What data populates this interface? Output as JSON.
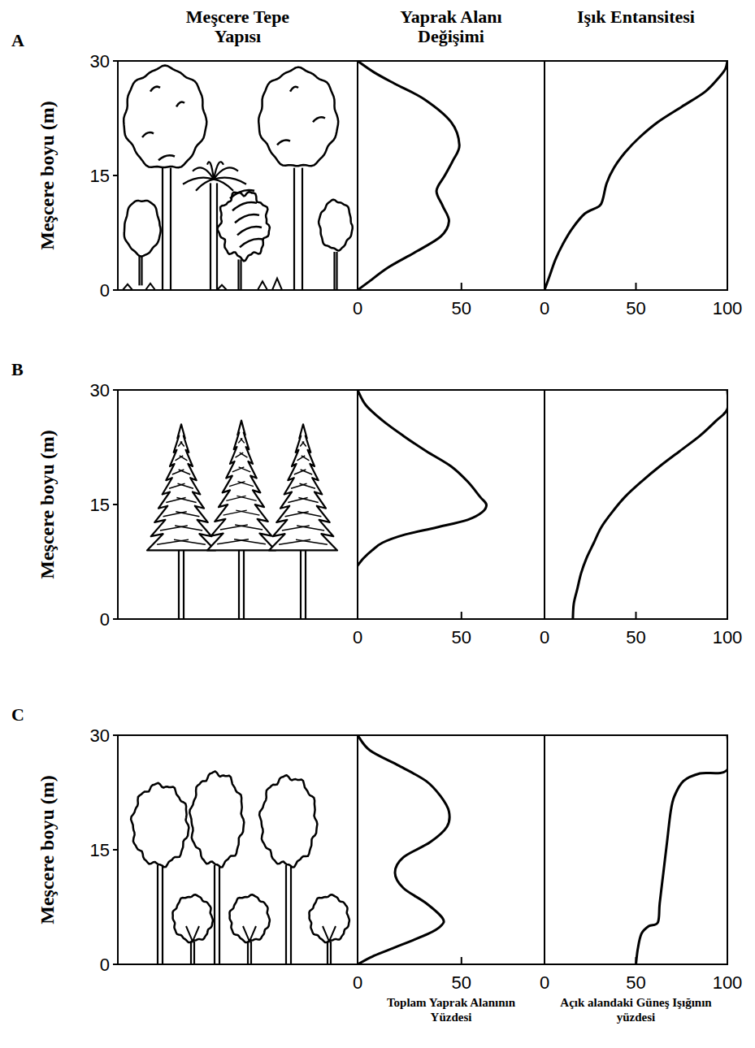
{
  "column_titles": [
    "Meşcere Tepe Yapısı",
    "Yaprak Alanı Değişimi",
    "Işık Entansitesi"
  ],
  "panels": [
    {
      "letter": "A",
      "ylabel": "Meşcere boyu (m)",
      "ylim": [
        0,
        30
      ],
      "yticks": [
        0,
        15,
        30
      ]
    },
    {
      "letter": "B",
      "ylabel": "Meşcere boyu (m)",
      "ylim": [
        0,
        30
      ],
      "yticks": [
        0,
        15,
        30
      ]
    },
    {
      "letter": "C",
      "ylabel": "Meşcere boyu (m)",
      "ylim": [
        0,
        30
      ],
      "yticks": [
        0,
        15,
        30
      ]
    }
  ],
  "chart_data": [
    {
      "type": "line",
      "tick_labels": "x",
      "x": [
        0,
        8,
        18,
        32,
        45,
        49,
        46,
        42,
        38,
        41,
        44,
        40,
        28,
        15,
        5,
        0
      ],
      "values": [
        30,
        28.5,
        27,
        25,
        22,
        19,
        17,
        15,
        13,
        11,
        9,
        7,
        5,
        3,
        1,
        0
      ],
      "xlim": [
        0,
        90
      ],
      "xticks": [
        0,
        50
      ],
      "ylim": [
        0,
        30
      ]
    },
    {
      "type": "line",
      "tick_labels": "x",
      "x": [
        100,
        99,
        96,
        88,
        75,
        62,
        52,
        44,
        38,
        34,
        32,
        30,
        22,
        15,
        10,
        6,
        3,
        0
      ],
      "values": [
        30,
        29,
        28,
        26,
        24,
        22,
        20,
        18,
        16,
        14,
        12,
        11,
        10,
        8,
        6,
        4,
        2,
        0
      ],
      "xlim": [
        0,
        100
      ],
      "xticks": [
        0,
        50,
        100
      ],
      "ylim": [
        0,
        30
      ]
    },
    {
      "type": "line",
      "tick_labels": "x",
      "x": [
        0,
        4,
        12,
        22,
        33,
        45,
        53,
        59,
        62,
        60,
        53,
        38,
        22,
        12,
        7,
        3,
        0
      ],
      "values": [
        30,
        28,
        26,
        24,
        22,
        20,
        18,
        16,
        15,
        14,
        13,
        12,
        11,
        10,
        9,
        8,
        7
      ],
      "xlim": [
        0,
        90
      ],
      "xticks": [
        0,
        50
      ],
      "ylim": [
        0,
        30
      ]
    },
    {
      "type": "line",
      "tick_labels": "x",
      "x": [
        15.5,
        16,
        18,
        20,
        23,
        27,
        31,
        37,
        44,
        53,
        63,
        74,
        85,
        94,
        100,
        100
      ],
      "values": [
        0,
        2,
        4,
        6,
        8,
        10,
        12,
        14,
        16,
        18,
        20,
        22,
        24,
        26,
        27.5,
        30
      ],
      "xlim": [
        0,
        100
      ],
      "xticks": [
        0,
        50,
        100
      ],
      "ylim": [
        0,
        30
      ]
    },
    {
      "type": "line",
      "tick_labels": "x",
      "xlabel": "Toplam Yaprak Alanının Yüzdesi",
      "x": [
        0,
        6,
        20,
        33,
        40,
        44,
        43,
        35,
        22,
        18,
        22,
        33,
        41,
        40,
        34,
        16,
        7,
        0
      ],
      "values": [
        30,
        28,
        26,
        24,
        22,
        20,
        18,
        16,
        14,
        12,
        10,
        8,
        6,
        5,
        4,
        2,
        1,
        0
      ],
      "xlim": [
        0,
        90
      ],
      "xticks": [
        0,
        50
      ],
      "ylim": [
        0,
        30
      ]
    },
    {
      "type": "line",
      "tick_labels": "x",
      "xlabel": "Açık alandaki Güneş Işığının yüzdesi",
      "x": [
        50,
        51,
        53,
        57,
        62,
        63,
        65,
        67,
        69,
        71,
        76,
        85,
        100,
        100
      ],
      "values": [
        0,
        2,
        4,
        5,
        5.5,
        8,
        12,
        16,
        20,
        22,
        24,
        25,
        25.5,
        30
      ],
      "xlim": [
        0,
        100
      ],
      "xticks": [
        0,
        50,
        100
      ],
      "ylim": [
        0,
        30
      ]
    }
  ]
}
